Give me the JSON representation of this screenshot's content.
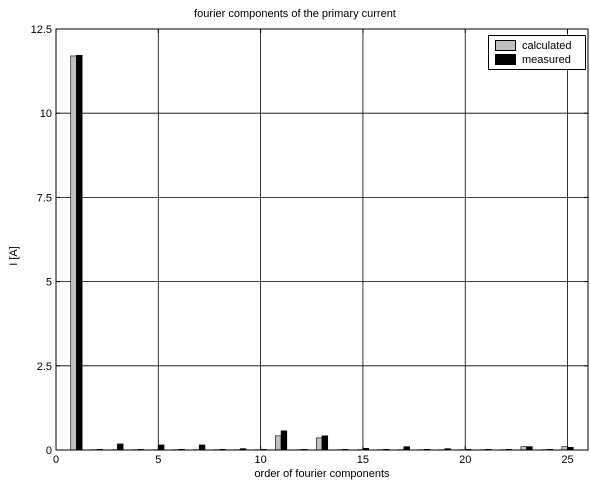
{
  "chart_data": {
    "type": "bar",
    "title": "fourier components of the primary current",
    "xlabel": "order of fourier components",
    "ylabel": "I [A]",
    "xlim": [
      0,
      26
    ],
    "ylim": [
      0,
      12.5
    ],
    "xticks": [
      0,
      5,
      10,
      15,
      20,
      25
    ],
    "yticks": [
      0,
      2.5,
      5,
      7.5,
      10,
      12.5
    ],
    "grid": true,
    "legend_position": "top-right",
    "categories": [
      1,
      2,
      3,
      4,
      5,
      6,
      7,
      8,
      9,
      10,
      11,
      12,
      13,
      14,
      15,
      16,
      17,
      18,
      19,
      20,
      21,
      22,
      23,
      24,
      25
    ],
    "series": [
      {
        "name": "calculated",
        "color": "#c0c0c0",
        "values": [
          11.7,
          0.01,
          0.01,
          0.01,
          0.01,
          0.01,
          0.01,
          0.01,
          0.01,
          0.01,
          0.42,
          0.01,
          0.36,
          0.01,
          0.01,
          0.01,
          0.01,
          0.01,
          0.01,
          0.01,
          0.01,
          0.01,
          0.1,
          0.01,
          0.1
        ]
      },
      {
        "name": "measured",
        "color": "#000000",
        "values": [
          11.72,
          0.02,
          0.18,
          0.02,
          0.15,
          0.02,
          0.15,
          0.02,
          0.04,
          0.02,
          0.57,
          0.02,
          0.42,
          0.02,
          0.05,
          0.02,
          0.1,
          0.02,
          0.04,
          0.02,
          0.02,
          0.02,
          0.1,
          0.02,
          0.08
        ]
      }
    ]
  }
}
